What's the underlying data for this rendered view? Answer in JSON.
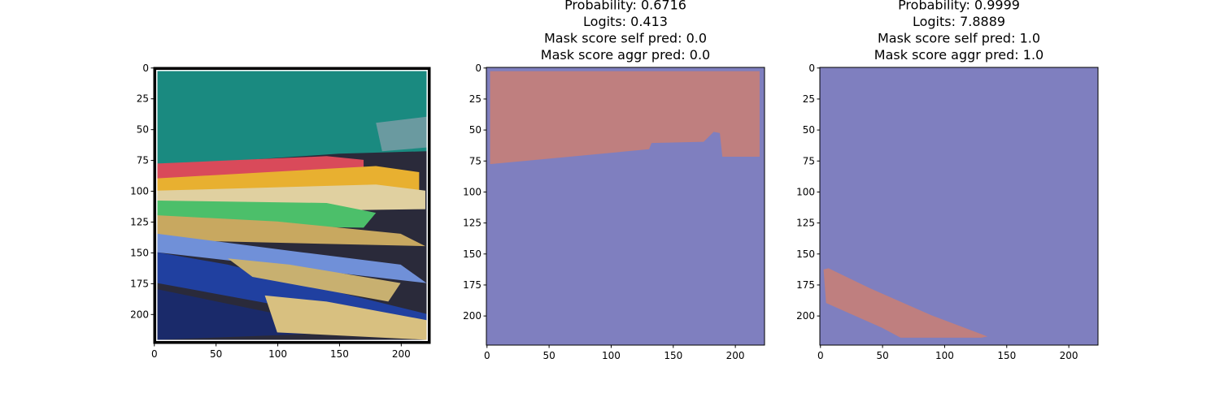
{
  "chart_data": [
    {
      "type": "image",
      "title": [],
      "xlim": [
        -0.5,
        223.5
      ],
      "ylim": [
        223.5,
        -0.5
      ],
      "xticks": [
        0,
        50,
        100,
        150,
        200
      ],
      "yticks": [
        0,
        25,
        50,
        75,
        100,
        125,
        150,
        175,
        200
      ]
    },
    {
      "type": "image",
      "title": [
        "Probability: 0.6716",
        "Logits: 0.413",
        "Mask score self pred: 0.0",
        "Mask score aggr pred: 0.0"
      ],
      "xlim": [
        -0.5,
        223.5
      ],
      "ylim": [
        223.5,
        -0.5
      ],
      "xticks": [
        0,
        50,
        100,
        150,
        200
      ],
      "yticks": [
        0,
        25,
        50,
        75,
        100,
        125,
        150,
        175,
        200
      ]
    },
    {
      "type": "image",
      "title": [
        "Probability: 0.9999",
        "Logits: 7.8889",
        "Mask score self pred: 1.0",
        "Mask score aggr pred: 1.0"
      ],
      "xlim": [
        -0.5,
        223.5
      ],
      "ylim": [
        223.5,
        -0.5
      ],
      "xticks": [
        0,
        50,
        100,
        150,
        200
      ],
      "yticks": [
        0,
        25,
        50,
        75,
        100,
        125,
        150,
        175,
        200
      ]
    }
  ]
}
